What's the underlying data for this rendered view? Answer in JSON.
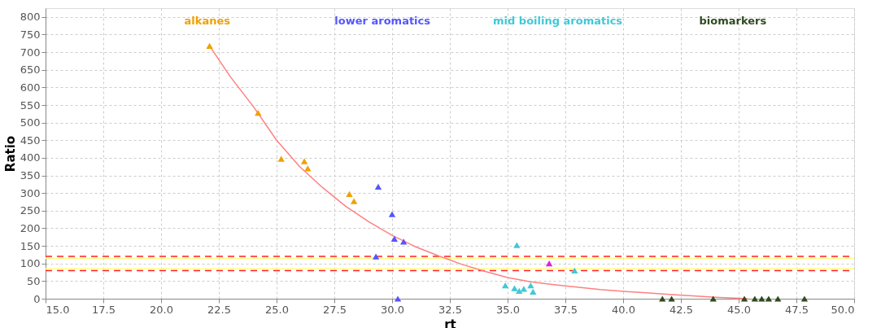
{
  "chart_data": {
    "type": "scatter",
    "xlabel": "rt",
    "ylabel": "Ratio",
    "xlim": [
      15,
      50
    ],
    "ylim": [
      0,
      825
    ],
    "xticks": [
      {
        "value": 15,
        "label": "15.0"
      },
      {
        "value": 17.5,
        "label": "17.5"
      },
      {
        "value": 20,
        "label": "20.0"
      },
      {
        "value": 22.5,
        "label": "22.5"
      },
      {
        "value": 25,
        "label": "25.0"
      },
      {
        "value": 27.5,
        "label": "27.5"
      },
      {
        "value": 30,
        "label": "30.0"
      },
      {
        "value": 32.5,
        "label": "32.5"
      },
      {
        "value": 35,
        "label": "35.0"
      },
      {
        "value": 37.5,
        "label": "37.5"
      },
      {
        "value": 40,
        "label": "40.0"
      },
      {
        "value": 42.5,
        "label": "42.5"
      },
      {
        "value": 45,
        "label": "45.0"
      },
      {
        "value": 47.5,
        "label": "47.5"
      },
      {
        "value": 50,
        "label": "50.0"
      }
    ],
    "yticks": [
      0,
      50,
      100,
      150,
      200,
      250,
      300,
      350,
      400,
      450,
      500,
      550,
      600,
      650,
      700,
      750,
      800
    ],
    "grid": true,
    "legend": "top",
    "marker": "triangle",
    "ref_lines": [
      {
        "axis": "y",
        "value": 120,
        "color": "#ff2020",
        "line_style": "dashed"
      },
      {
        "axis": "y",
        "value": 80,
        "color": "#ff2020",
        "line_style": "dashed"
      },
      {
        "axis": "y",
        "value": 115,
        "color": "#ffff80",
        "line_style": "solid"
      },
      {
        "axis": "y",
        "value": 85,
        "color": "#ffff80",
        "line_style": "solid"
      }
    ],
    "series": [
      {
        "type": "line",
        "color": "#ff8080",
        "marker": "none",
        "x": [
          22.1,
          23,
          24,
          25,
          26,
          27,
          28,
          29,
          30,
          31,
          32,
          33,
          34,
          35,
          36,
          37,
          38,
          39,
          40,
          41,
          42,
          43,
          44,
          45,
          45.4
        ],
        "values": [
          718,
          630,
          545,
          450,
          375,
          315,
          262,
          218,
          180,
          148,
          122,
          98,
          78,
          60,
          48,
          40,
          33,
          26,
          21,
          17,
          12,
          8,
          4,
          1,
          0
        ]
      },
      {
        "name": "alkanes",
        "color": "#f0a000",
        "x": [
          22.1,
          24.2,
          25.2,
          26.2,
          26.35,
          28.15,
          28.35
        ],
        "values": [
          718,
          528,
          397,
          390,
          370,
          297,
          277
        ]
      },
      {
        "name": "lower aromatics",
        "color": "#5555ff",
        "x": [
          29.4,
          30.0,
          30.1,
          30.5,
          29.3,
          30.25
        ],
        "values": [
          318,
          240,
          170,
          162,
          120,
          0
        ]
      },
      {
        "name": "mid boiling aromatics",
        "color": "#40c8d8",
        "x": [
          35.4,
          34.9,
          35.3,
          35.5,
          35.7,
          36.0,
          36.1,
          37.9
        ],
        "values": [
          152,
          38,
          30,
          22,
          28,
          38,
          20,
          80
        ]
      },
      {
        "color": "#e020e0",
        "x": [
          36.8
        ],
        "values": [
          100
        ]
      },
      {
        "name": "biomarkers",
        "color": "#2f4a1f",
        "x": [
          41.7,
          42.1,
          43.9,
          45.25,
          45.7,
          46.0,
          46.3,
          46.7,
          47.85
        ],
        "values": [
          0,
          0,
          0,
          0,
          0,
          0,
          0,
          0,
          0
        ]
      }
    ]
  }
}
